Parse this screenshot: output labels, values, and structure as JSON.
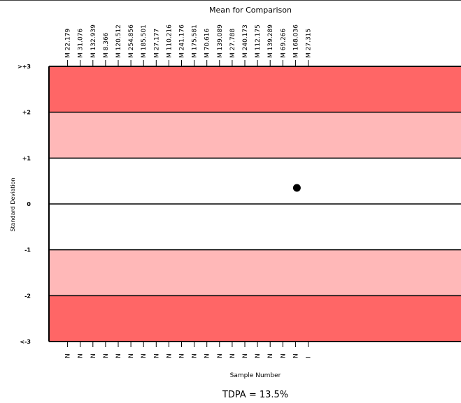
{
  "chart_data": {
    "type": "scatter",
    "title": "Mean for Comparison",
    "xlabel": "Sample Number",
    "ylabel": "Standard Deviation",
    "footer": "TDPA = 13.5%",
    "top_tick_labels": [
      "M 22.179",
      "M 31.076",
      "M 132.939",
      "M 8.366",
      "M 120.512",
      "M 254.856",
      "M 185.501",
      "M 27.177",
      "M 110.216",
      "M 241.176",
      "M 175.581",
      "M 70.616",
      "M 139.089",
      "M 27.788",
      "M 240.173",
      "M 112.175",
      "M 139.289",
      "M 69.266",
      "M 168.036",
      "M 27.315"
    ],
    "bottom_tick_labels": [
      "N",
      "N",
      "N",
      "N",
      "N",
      "N",
      "N",
      "N",
      "N",
      "N",
      "N",
      "N",
      "N",
      "N",
      "N",
      "N",
      "N",
      "N",
      "N",
      "I"
    ],
    "y_tick_labels": [
      ">+3",
      "+2",
      "+1",
      "0",
      "-1",
      "-2",
      "<-3"
    ],
    "ylim": [
      -3,
      3
    ],
    "bands": [
      {
        "from": 2,
        "to": 3,
        "color": "#ff6666"
      },
      {
        "from": 1,
        "to": 2,
        "color": "#ffb8b8"
      },
      {
        "from": -1,
        "to": 1,
        "color": "#ffffff"
      },
      {
        "from": -2,
        "to": -1,
        "color": "#ffb8b8"
      },
      {
        "from": -3,
        "to": -2,
        "color": "#ff6666"
      }
    ],
    "points": [
      {
        "x_index": 20,
        "y": 0.35
      }
    ]
  }
}
